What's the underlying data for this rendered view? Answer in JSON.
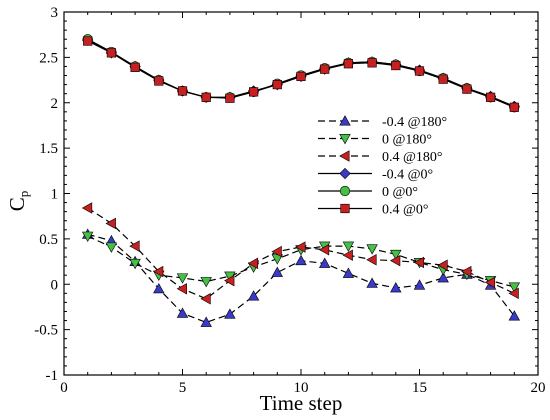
{
  "chart_data": {
    "type": "line",
    "xlabel": "Time step",
    "ylabel": "C",
    "ylabel_sub": "p",
    "xlim": [
      0,
      20
    ],
    "ylim": [
      -1,
      3
    ],
    "xticks": [
      0,
      5,
      10,
      15,
      20
    ],
    "yticks": [
      -1,
      -0.5,
      0,
      0.5,
      1,
      1.5,
      2,
      2.5,
      3
    ],
    "grid": false,
    "legend_position": "right-middle",
    "x": [
      1,
      2,
      3,
      4,
      5,
      6,
      7,
      8,
      9,
      10,
      11,
      12,
      13,
      14,
      15,
      16,
      17,
      18,
      19
    ],
    "series": [
      {
        "name": "-0.4 @180°",
        "line": "dashed",
        "marker": "triangle-up",
        "color": "#3a3ac8",
        "values": [
          0.55,
          0.48,
          0.25,
          -0.05,
          -0.32,
          -0.42,
          -0.33,
          -0.13,
          0.13,
          0.26,
          0.23,
          0.12,
          0.01,
          -0.04,
          -0.01,
          0.07,
          0.11,
          -0.01,
          -0.35
        ]
      },
      {
        "name": "0 @180°",
        "line": "dashed",
        "marker": "triangle-down",
        "color": "#44c044",
        "values": [
          0.53,
          0.41,
          0.23,
          0.1,
          0.07,
          0.03,
          0.09,
          0.19,
          0.28,
          0.38,
          0.42,
          0.42,
          0.39,
          0.33,
          0.24,
          0.16,
          0.11,
          0.04,
          -0.03
        ]
      },
      {
        "name": "0.4 @180°",
        "line": "dashed",
        "marker": "triangle-left",
        "color": "#c82020",
        "values": [
          0.84,
          0.67,
          0.42,
          0.14,
          -0.05,
          -0.16,
          0.04,
          0.23,
          0.36,
          0.41,
          0.38,
          0.32,
          0.27,
          0.26,
          0.24,
          0.21,
          0.14,
          0.02,
          -0.1
        ]
      },
      {
        "name": "-0.4 @0°",
        "line": "solid",
        "marker": "diamond",
        "color": "#3a3ac8",
        "values": [
          2.69,
          2.55,
          2.4,
          2.25,
          2.13,
          2.06,
          2.06,
          2.13,
          2.2,
          2.29,
          2.37,
          2.44,
          2.45,
          2.42,
          2.36,
          2.27,
          2.16,
          2.07,
          1.96
        ]
      },
      {
        "name": "0 @0°",
        "line": "solid",
        "marker": "circle",
        "color": "#44c044",
        "values": [
          2.7,
          2.56,
          2.4,
          2.25,
          2.13,
          2.06,
          2.06,
          2.12,
          2.21,
          2.3,
          2.38,
          2.44,
          2.45,
          2.42,
          2.35,
          2.27,
          2.16,
          2.06,
          1.95
        ]
      },
      {
        "name": "0.4 @0°",
        "line": "solid",
        "marker": "square",
        "color": "#c82020",
        "values": [
          2.68,
          2.55,
          2.39,
          2.24,
          2.13,
          2.06,
          2.05,
          2.12,
          2.2,
          2.29,
          2.37,
          2.43,
          2.44,
          2.41,
          2.35,
          2.26,
          2.15,
          2.06,
          1.95
        ]
      }
    ]
  }
}
